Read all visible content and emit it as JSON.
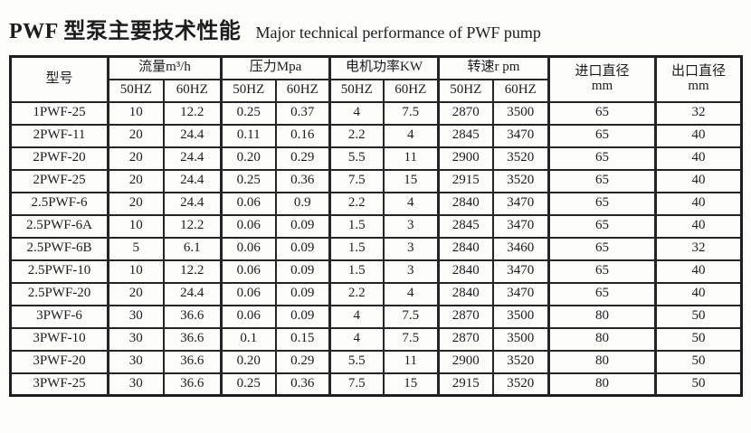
{
  "title": {
    "zh": "PWF 型泵主要技术性能",
    "en": "Major technical performance of PWF pump"
  },
  "table": {
    "col_groups": [
      {
        "label": "型号"
      },
      {
        "label": "流量m³/h",
        "sub": [
          "50HZ",
          "60HZ"
        ]
      },
      {
        "label": "压力Mpa",
        "sub": [
          "50HZ",
          "60HZ"
        ]
      },
      {
        "label": "电机功率KW",
        "sub": [
          "50HZ",
          "60HZ"
        ]
      },
      {
        "label": "转速r pm",
        "sub": [
          "50HZ",
          "60HZ"
        ]
      },
      {
        "label": "进口直径",
        "unit": "mm"
      },
      {
        "label": "出口直径",
        "unit": "mm"
      }
    ],
    "rows": [
      [
        "1PWF-25",
        "10",
        "12.2",
        "0.25",
        "0.37",
        "4",
        "7.5",
        "2870",
        "3500",
        "65",
        "32"
      ],
      [
        "2PWF-11",
        "20",
        "24.4",
        "0.11",
        "0.16",
        "2.2",
        "4",
        "2845",
        "3470",
        "65",
        "40"
      ],
      [
        "2PWF-20",
        "20",
        "24.4",
        "0.20",
        "0.29",
        "5.5",
        "11",
        "2900",
        "3520",
        "65",
        "40"
      ],
      [
        "2PWF-25",
        "20",
        "24.4",
        "0.25",
        "0.36",
        "7.5",
        "15",
        "2915",
        "3520",
        "65",
        "40"
      ],
      [
        "2.5PWF-6",
        "20",
        "24.4",
        "0.06",
        "0.9",
        "2.2",
        "4",
        "2840",
        "3470",
        "65",
        "40"
      ],
      [
        "2.5PWF-6A",
        "10",
        "12.2",
        "0.06",
        "0.09",
        "1.5",
        "3",
        "2845",
        "3470",
        "65",
        "40"
      ],
      [
        "2.5PWF-6B",
        "5",
        "6.1",
        "0.06",
        "0.09",
        "1.5",
        "3",
        "2840",
        "3460",
        "65",
        "32"
      ],
      [
        "2.5PWF-10",
        "10",
        "12.2",
        "0.06",
        "0.09",
        "1.5",
        "3",
        "2840",
        "3470",
        "65",
        "40"
      ],
      [
        "2.5PWF-20",
        "20",
        "24.4",
        "0.06",
        "0.09",
        "2.2",
        "4",
        "2840",
        "3470",
        "65",
        "40"
      ],
      [
        "3PWF-6",
        "30",
        "36.6",
        "0.06",
        "0.09",
        "4",
        "7.5",
        "2870",
        "3500",
        "80",
        "50"
      ],
      [
        "3PWF-10",
        "30",
        "36.6",
        "0.1",
        "0.15",
        "4",
        "7.5",
        "2870",
        "3500",
        "80",
        "50"
      ],
      [
        "3PWF-20",
        "30",
        "36.6",
        "0.20",
        "0.29",
        "5.5",
        "11",
        "2900",
        "3520",
        "80",
        "50"
      ],
      [
        "3PWF-25",
        "30",
        "36.6",
        "0.25",
        "0.36",
        "7.5",
        "15",
        "2915",
        "3520",
        "80",
        "50"
      ]
    ]
  }
}
